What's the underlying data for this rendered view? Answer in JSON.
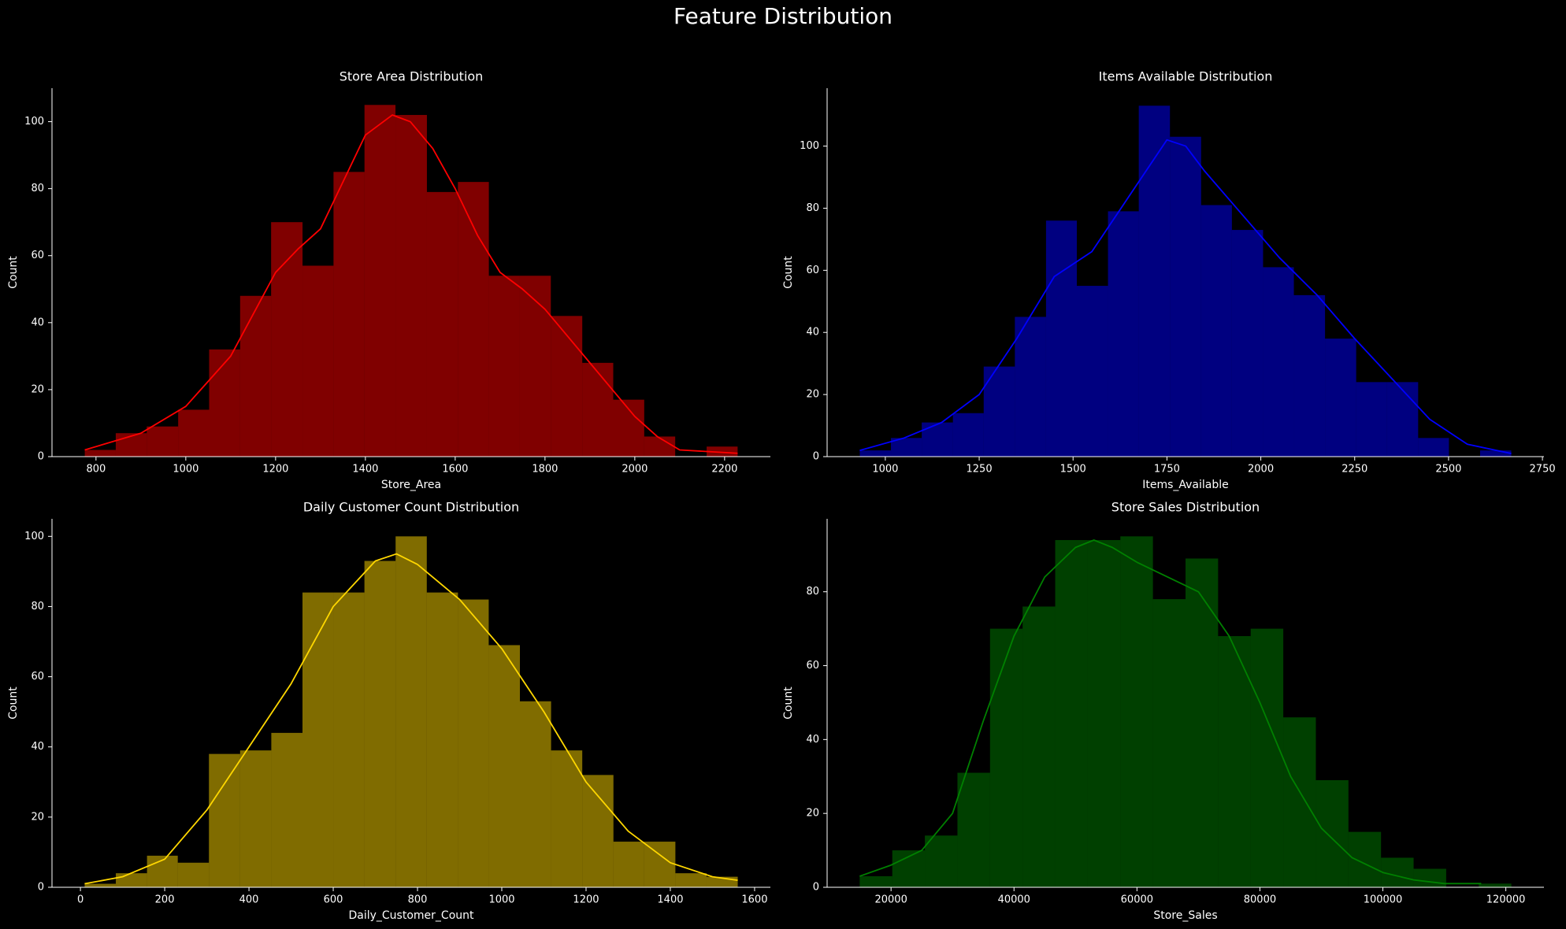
{
  "title": "Feature Distribution",
  "chart_data": [
    {
      "type": "histogram",
      "title": "Store Area Distribution",
      "xlabel": "Store_Area",
      "ylabel": "Count",
      "color": "red",
      "bins": [
        775,
        844,
        913,
        983,
        1052,
        1121,
        1190,
        1260,
        1329,
        1398,
        1467,
        1537,
        1606,
        1675,
        1744,
        1813,
        1883,
        1952,
        2021,
        2090,
        2160,
        2229
      ],
      "counts": [
        2,
        7,
        9,
        14,
        32,
        48,
        70,
        57,
        85,
        105,
        102,
        79,
        82,
        54,
        54,
        42,
        28,
        17,
        6,
        0,
        3
      ],
      "kde": {
        "x": [
          775,
          900,
          1000,
          1100,
          1200,
          1250,
          1300,
          1350,
          1400,
          1460,
          1500,
          1550,
          1600,
          1650,
          1700,
          1750,
          1800,
          1850,
          1900,
          1950,
          2000,
          2050,
          2100,
          2229
        ],
        "values": [
          2,
          7,
          15,
          30,
          55,
          62,
          68,
          82,
          96,
          102,
          100,
          92,
          80,
          66,
          55,
          50,
          44,
          36,
          28,
          20,
          12,
          6,
          2,
          1
        ]
      },
      "xlim": [
        702,
        2302
      ],
      "ylim": [
        0,
        110
      ],
      "xticks": [
        800,
        1000,
        1200,
        1400,
        1600,
        1800,
        2000,
        2200
      ],
      "yticks": [
        0,
        20,
        40,
        60,
        80,
        100
      ]
    },
    {
      "type": "histogram",
      "title": "Items Available Distribution",
      "xlabel": "Items_Available",
      "ylabel": "Count",
      "color": "blue",
      "bins": [
        932,
        1015,
        1097,
        1180,
        1262,
        1345,
        1428,
        1510,
        1593,
        1675,
        1758,
        1841,
        1923,
        2006,
        2088,
        2171,
        2254,
        2336,
        2419,
        2501,
        2584,
        2667
      ],
      "counts": [
        2,
        6,
        11,
        14,
        29,
        45,
        76,
        55,
        79,
        113,
        103,
        81,
        73,
        61,
        52,
        38,
        24,
        24,
        6,
        0,
        2
      ],
      "kde": {
        "x": [
          932,
          1050,
          1150,
          1250,
          1350,
          1450,
          1550,
          1650,
          1750,
          1800,
          1850,
          1950,
          2050,
          2150,
          2250,
          2350,
          2450,
          2550,
          2667
        ],
        "values": [
          2,
          6,
          11,
          20,
          38,
          58,
          66,
          84,
          102,
          100,
          92,
          78,
          64,
          52,
          38,
          25,
          12,
          4,
          1
        ]
      },
      "xlim": [
        845,
        2754
      ],
      "ylim": [
        0,
        118.65
      ],
      "xticks": [
        1000,
        1250,
        1500,
        1750,
        2000,
        2250,
        2500,
        2750
      ],
      "yticks": [
        0,
        20,
        40,
        60,
        80,
        100
      ]
    },
    {
      "type": "histogram",
      "title": "Daily Customer Count Distribution",
      "xlabel": "Daily_Customer_Count",
      "ylabel": "Count",
      "color": "gold",
      "bins": [
        10,
        84,
        158,
        231,
        305,
        379,
        453,
        527,
        600,
        674,
        748,
        822,
        896,
        969,
        1043,
        1117,
        1191,
        1265,
        1338,
        1412,
        1486,
        1560
      ],
      "counts": [
        1,
        4,
        9,
        7,
        38,
        39,
        44,
        84,
        84,
        93,
        100,
        84,
        82,
        69,
        53,
        39,
        32,
        13,
        13,
        4,
        3
      ],
      "kde": {
        "x": [
          10,
          100,
          200,
          300,
          400,
          500,
          600,
          700,
          750,
          800,
          900,
          1000,
          1100,
          1200,
          1300,
          1400,
          1500,
          1560
        ],
        "values": [
          1,
          3,
          8,
          22,
          40,
          58,
          80,
          93,
          95,
          92,
          82,
          68,
          50,
          30,
          16,
          7,
          3,
          2
        ]
      },
      "xlim": [
        -67.5,
        1637.5
      ],
      "ylim": [
        0,
        105
      ],
      "xticks": [
        0,
        200,
        400,
        600,
        800,
        1000,
        1200,
        1400,
        1600
      ],
      "yticks": [
        0,
        20,
        40,
        60,
        80,
        100
      ]
    },
    {
      "type": "histogram",
      "title": "Store Sales Distribution",
      "xlabel": "Store_Sales",
      "ylabel": "Count",
      "color": "green",
      "bins": [
        14900,
        20200,
        25500,
        30800,
        36100,
        41400,
        46700,
        52000,
        57300,
        62600,
        67900,
        73200,
        78500,
        83800,
        89100,
        94400,
        99700,
        105000,
        110300,
        115600,
        120900
      ],
      "counts": [
        3,
        10,
        14,
        31,
        70,
        76,
        94,
        94,
        95,
        78,
        89,
        68,
        70,
        46,
        29,
        15,
        8,
        5,
        0,
        1
      ],
      "kde": {
        "x": [
          14900,
          20000,
          25000,
          30000,
          35000,
          40000,
          45000,
          50000,
          53000,
          56000,
          60000,
          65000,
          70000,
          75000,
          80000,
          85000,
          90000,
          95000,
          100000,
          105000,
          110000,
          116000
        ],
        "values": [
          3,
          6,
          10,
          20,
          45,
          68,
          84,
          92,
          94,
          92,
          88,
          84,
          80,
          68,
          50,
          30,
          16,
          8,
          4,
          2,
          1,
          1
        ]
      },
      "xlim": [
        9600,
        126200
      ],
      "ylim": [
        0,
        99.75
      ],
      "xticks": [
        20000,
        40000,
        60000,
        80000,
        100000,
        120000
      ],
      "yticks": [
        0,
        20,
        40,
        60,
        80
      ]
    }
  ]
}
